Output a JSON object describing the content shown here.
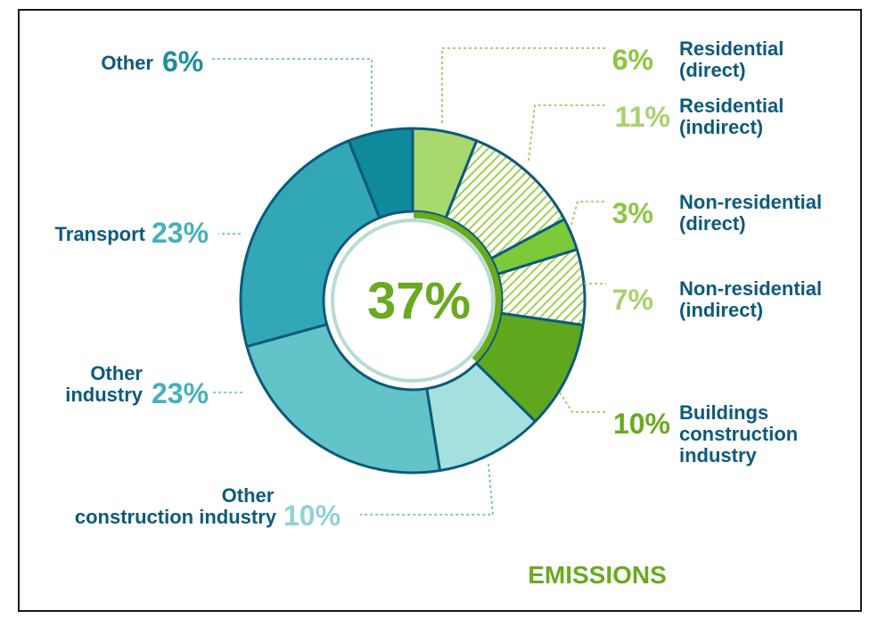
{
  "chart_data": {
    "type": "pie",
    "style": "donut",
    "center_label": "37%",
    "caption": "EMISSIONS",
    "slices": [
      {
        "name": "Residential (direct)",
        "label_lines": [
          "Residential",
          "(direct)"
        ],
        "pct_label": "6%",
        "value": 6,
        "group": "buildings",
        "hatched": false,
        "color": "#a8d86e"
      },
      {
        "name": "Residential (indirect)",
        "label_lines": [
          "Residential",
          "(indirect)"
        ],
        "pct_label": "11%",
        "value": 11,
        "group": "buildings",
        "hatched": true,
        "color": "#b4dc7c"
      },
      {
        "name": "Non-residential (direct)",
        "label_lines": [
          "Non-residential",
          "(direct)"
        ],
        "pct_label": "3%",
        "value": 3,
        "group": "buildings",
        "hatched": false,
        "color": "#7cc93a"
      },
      {
        "name": "Non-residential (indirect)",
        "label_lines": [
          "Non-residential",
          "(indirect)"
        ],
        "pct_label": "7%",
        "value": 7,
        "group": "buildings",
        "hatched": true,
        "color": "#8fce4a"
      },
      {
        "name": "Buildings construction industry",
        "label_lines": [
          "Buildings",
          "construction",
          "industry"
        ],
        "pct_label": "10%",
        "value": 10,
        "group": "buildings",
        "hatched": false,
        "color": "#5fa81e"
      },
      {
        "name": "Other construction industry",
        "label_lines": [
          "Other",
          "construction industry"
        ],
        "pct_label": "10%",
        "value": 10,
        "group": "other",
        "hatched": false,
        "color": "#a3e0de"
      },
      {
        "name": "Other industry",
        "label_lines": [
          "Other",
          "industry"
        ],
        "pct_label": "23%",
        "value": 23,
        "group": "other",
        "hatched": false,
        "color": "#62c4c8"
      },
      {
        "name": "Transport",
        "label_lines": [
          "Transport"
        ],
        "pct_label": "23%",
        "value": 23,
        "group": "other",
        "hatched": false,
        "color": "#32a8b6"
      },
      {
        "name": "Other",
        "label_lines": [
          "Other"
        ],
        "pct_label": "6%",
        "value": 6,
        "group": "other",
        "hatched": false,
        "color": "#0e8a9c"
      }
    ],
    "colors": {
      "border": "#0d5a7c",
      "label_text": "#0d5a7c",
      "green_text": "#8cc63f",
      "center_text": "#6aaa1e",
      "caption_text": "#6aaa1e",
      "inner_ring": "#b6dcd3",
      "leader_green": "#8cc63f",
      "leader_blue": "#5fb4bc"
    }
  }
}
